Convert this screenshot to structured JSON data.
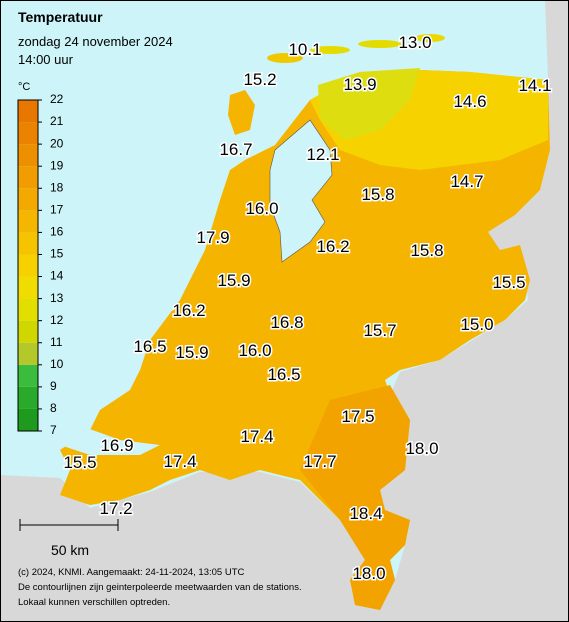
{
  "header": {
    "title": "Temperatuur",
    "date": "zondag 24 november 2024",
    "time": "14:00 uur"
  },
  "legend": {
    "unit": "°C",
    "ticks": [
      7,
      8,
      9,
      10,
      11,
      12,
      13,
      14,
      15,
      16,
      17,
      18,
      19,
      20,
      21,
      22
    ],
    "colors": [
      "#1e9a1e",
      "#2aaa2a",
      "#3cbc3c",
      "#b4c82a",
      "#cfd600",
      "#e2df00",
      "#f0dc00",
      "#f7d000",
      "#f6c300",
      "#f5b600",
      "#f3a900",
      "#f19c00",
      "#ee8f00",
      "#eb8300",
      "#e87700"
    ]
  },
  "stations": [
    "10.1",
    "13.0",
    "15.2",
    "13.9",
    "14.6",
    "14.1",
    "16.7",
    "12.1",
    "15.8",
    "14.7",
    "16.0",
    "17.9",
    "16.2",
    "15.8",
    "15.5",
    "15.9",
    "16.2",
    "16.8",
    "15.7",
    "15.0",
    "16.5",
    "15.9",
    "16.0",
    "16.5",
    "17.5",
    "17.4",
    "18.0",
    "16.9",
    "17.7",
    "15.5",
    "17.4",
    "18.4",
    "17.2",
    "18.0"
  ],
  "scale": "50 km",
  "footer": [
    "(c) 2024, KNMI. Aangemaakt: 24-11-2024, 13:05 UTC",
    "De contourlijnen zijn geinterpoleerde meetwaarden van de stations.",
    "Lokaal kunnen verschillen optreden."
  ]
}
